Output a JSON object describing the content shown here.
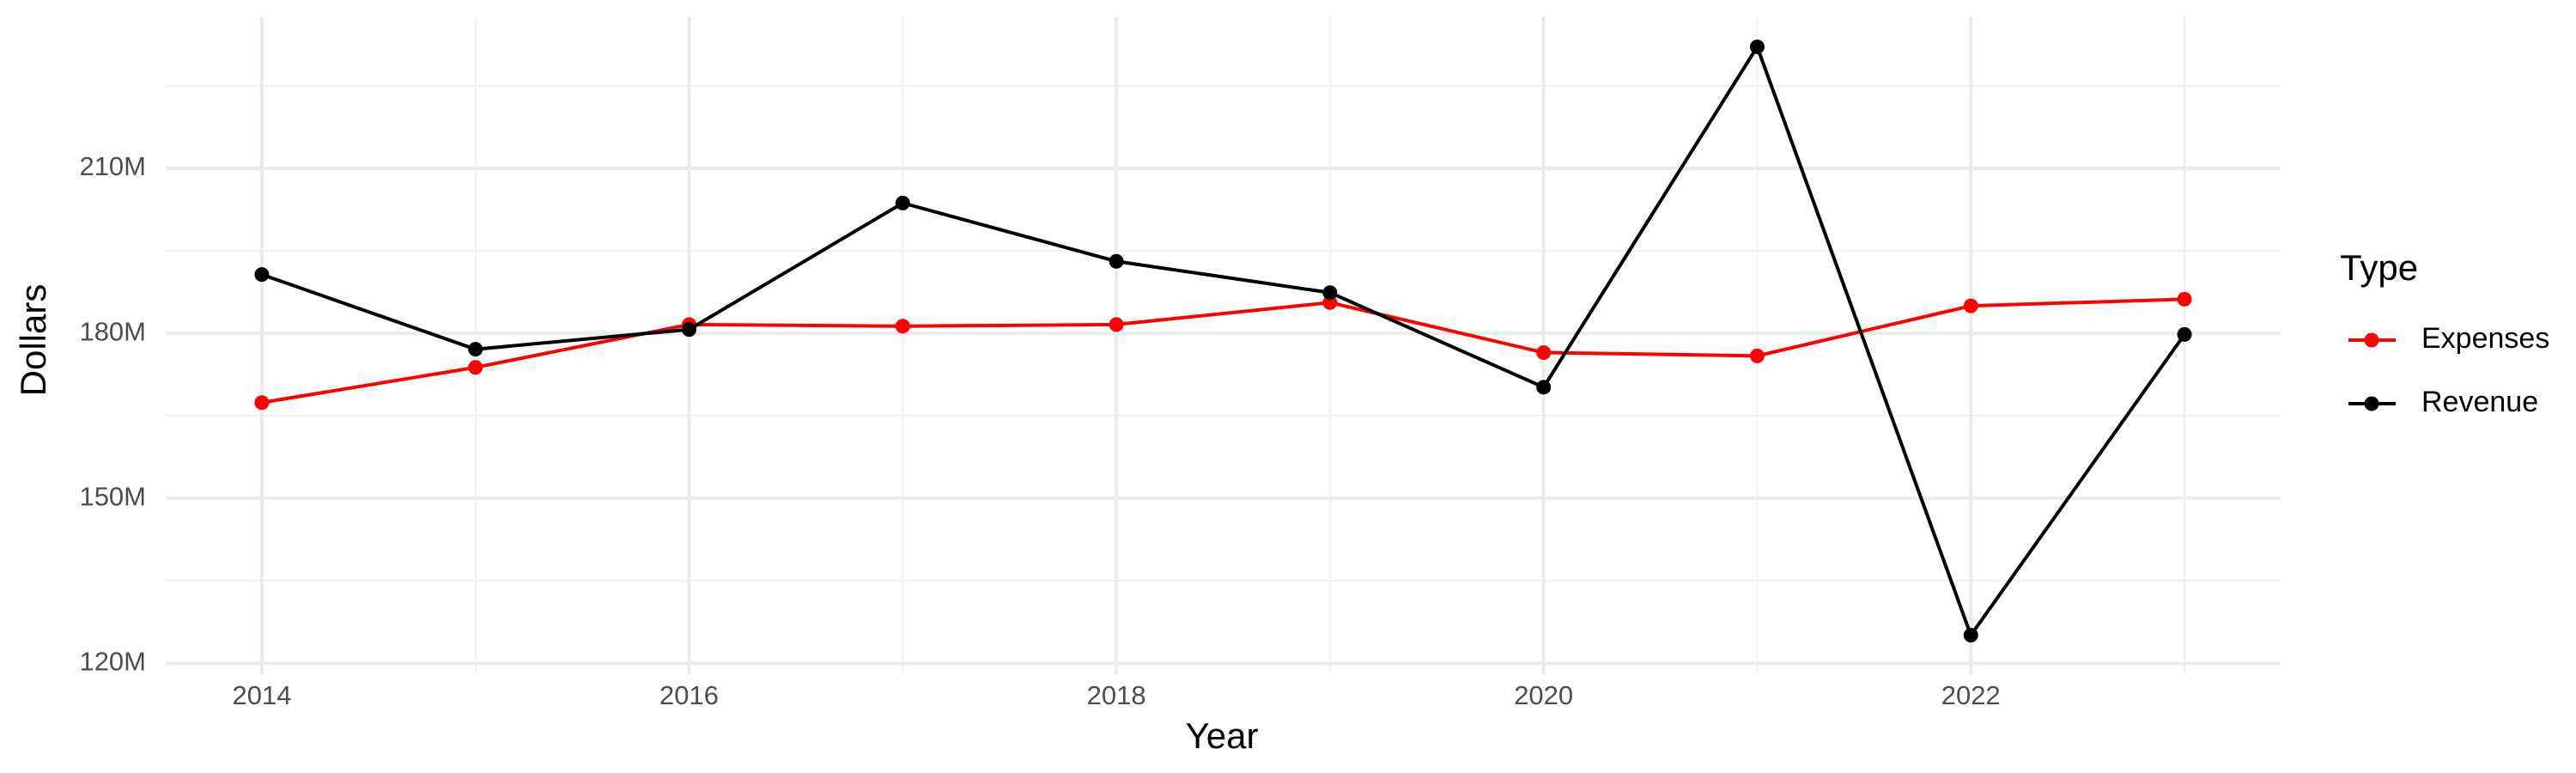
{
  "chart_data": {
    "type": "line",
    "x": [
      2014,
      2015,
      2016,
      2017,
      2018,
      2019,
      2020,
      2021,
      2022,
      2023
    ],
    "series": [
      {
        "name": "Expenses",
        "color": "#ff0000",
        "values": [
          167400000,
          173800000,
          181600000,
          181300000,
          181600000,
          185600000,
          176500000,
          175900000,
          185000000,
          186200000
        ]
      },
      {
        "name": "Revenue",
        "color": "#000000",
        "values": [
          190700000,
          177100000,
          180700000,
          203700000,
          193100000,
          187400000,
          170200000,
          232100000,
          125100000,
          179800000
        ]
      }
    ],
    "x_label": "Year",
    "y_label": "Dollars",
    "legend_title": "Type",
    "xlim": [
      2013.55,
      2023.45
    ],
    "xticks": [
      2014,
      2016,
      2018,
      2020,
      2022
    ],
    "ylim": [
      118000000,
      237500000
    ],
    "yticks": [
      {
        "value": 120000000,
        "label": "120M"
      },
      {
        "value": 150000000,
        "label": "150M"
      },
      {
        "value": 180000000,
        "label": "180M"
      },
      {
        "value": 210000000,
        "label": "210M"
      }
    ],
    "grid": true,
    "legend": "right"
  }
}
